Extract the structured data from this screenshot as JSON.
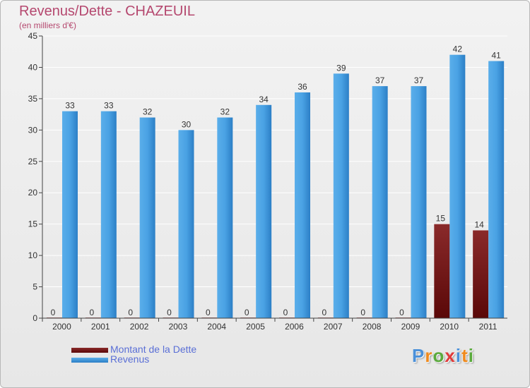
{
  "title": "Revenus/Dette - CHAZEUIL",
  "subtitle": "(en milliers d'€)",
  "colors": {
    "title": "#b5486f",
    "dette": "#6b0d0d",
    "revenus": "#3f97dc",
    "legend_text": "#5a6fd6"
  },
  "legend": [
    {
      "label": "Montant de la Dette",
      "color": "#6b0d0d"
    },
    {
      "label": "Revenus",
      "color": "#3f97dc"
    }
  ],
  "logo": {
    "letters": [
      {
        "char": "P",
        "color": "#4a90d9"
      },
      {
        "char": "r",
        "color": "#f08a1c"
      },
      {
        "char": "o",
        "color": "#5aaa3c"
      },
      {
        "char": "x",
        "color": "#e03a3a"
      },
      {
        "char": "i",
        "color": "#4a90d9"
      },
      {
        "char": "t",
        "color": "#f08a1c"
      },
      {
        "char": "i",
        "color": "#5aaa3c"
      }
    ]
  },
  "chart_data": {
    "type": "bar",
    "title": "Revenus/Dette - CHAZEUIL",
    "ylabel": "(en milliers d'€)",
    "xlabel": "",
    "categories": [
      "2000",
      "2001",
      "2002",
      "2003",
      "2004",
      "2005",
      "2006",
      "2007",
      "2008",
      "2009",
      "2010",
      "2011"
    ],
    "series": [
      {
        "name": "Montant de la Dette",
        "values": [
          0,
          0,
          0,
          0,
          0,
          0,
          0,
          0,
          0,
          0,
          15,
          14
        ]
      },
      {
        "name": "Revenus",
        "values": [
          33,
          33,
          32,
          30,
          32,
          34,
          36,
          39,
          37,
          37,
          42,
          41
        ]
      }
    ],
    "ylim": [
      0,
      45
    ],
    "yticks": [
      0,
      5,
      10,
      15,
      20,
      25,
      30,
      35,
      40,
      45
    ],
    "grid": true,
    "legend_position": "bottom-left"
  }
}
